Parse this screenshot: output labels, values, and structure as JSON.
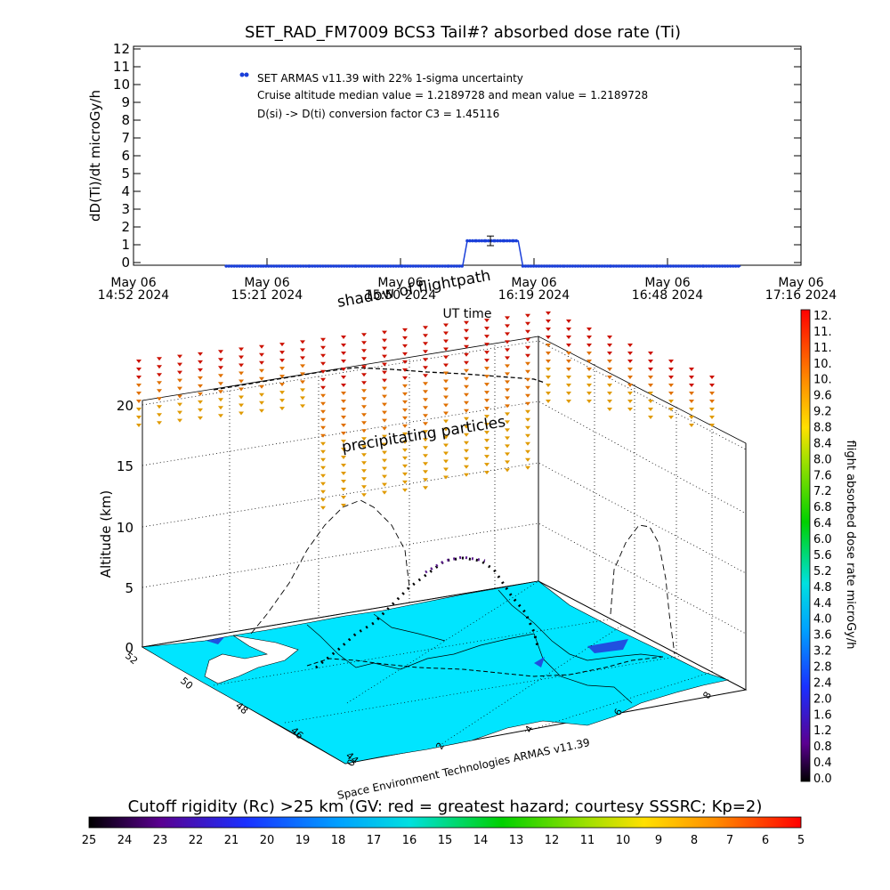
{
  "title": "SET_RAD_FM7009  BCS3 Tail#? absorbed dose rate (Ti)",
  "notes": [
    "SET ARMAS v11.39 with 22% 1-sigma uncertainty",
    "Cruise altitude median value = 1.2189728 and mean value = 1.2189728",
    "D(si) -> D(ti) conversion factor C3 = 1.45116"
  ],
  "x_ticks": [
    {
      "l1": "May 06",
      "l2": "14:52 2024"
    },
    {
      "l1": "May 06",
      "l2": "15:21 2024"
    },
    {
      "l1": "May 06",
      "l2": "15:50 2024"
    },
    {
      "l1": "May 06",
      "l2": "16:19 2024"
    },
    {
      "l1": "May 06",
      "l2": "16:48 2024"
    },
    {
      "l1": "May 06",
      "l2": "17:16 2024"
    }
  ],
  "xlabel": "UT time",
  "overlay_labels": {
    "shadow": "shadow of flightpath",
    "precip": "precipitating particles"
  },
  "scene": {
    "alt_label": "Altitude (km)",
    "alt_ticks": [
      "0",
      "5",
      "10",
      "15",
      "20"
    ],
    "lat_ticks": [
      "52",
      "50",
      "48",
      "46",
      "44"
    ],
    "lon_ticks": [
      "0",
      "2",
      "4",
      "6",
      "8"
    ],
    "credit": "Space Environment Technologies ARMAS v11.39",
    "colors": {
      "map": "#00e5ff",
      "track": "#000000",
      "precip_high": "#cc1100",
      "precip_mid": "#e07000",
      "precip_low": "#e09a00"
    }
  },
  "colorbar": {
    "label": "flight absorbed dose rate microGy/h",
    "ticks": [
      "12.",
      "11.",
      "11.",
      "10.",
      "10.",
      "9.6",
      "9.2",
      "8.8",
      "8.4",
      "8.0",
      "7.6",
      "7.2",
      "6.8",
      "6.4",
      "6.0",
      "5.6",
      "5.2",
      "4.8",
      "4.4",
      "4.0",
      "3.6",
      "3.2",
      "2.8",
      "2.4",
      "2.0",
      "1.6",
      "1.2",
      "0.8",
      "0.4",
      "0.0"
    ]
  },
  "bottom_bar": {
    "label": "Cutoff rigidity (Rc) >25 km (GV: red = greatest hazard; courtesy SSSRC; Kp=2)",
    "ticks": [
      "25",
      "24",
      "23",
      "22",
      "21",
      "20",
      "19",
      "18",
      "17",
      "16",
      "15",
      "14",
      "13",
      "12",
      "11",
      "10",
      "9",
      "8",
      "7",
      "6",
      "5"
    ]
  },
  "chart_data": {
    "type": "line",
    "title": "SET_RAD_FM7009  BCS3 Tail#? absorbed dose rate (Ti)",
    "xlabel": "UT time",
    "ylabel": "dD(Ti)/dt microGy/h",
    "ylim": [
      0,
      12
    ],
    "y_ticks": [
      "0",
      "1",
      "2",
      "3",
      "4",
      "5",
      "6",
      "7",
      "8",
      "9",
      "10",
      "11",
      "12"
    ],
    "xlim": [
      "2024-05-06 14:52",
      "2024-05-06 17:16"
    ],
    "grid": false,
    "color": "#1a3fd9",
    "series": [
      {
        "values": [
          [
            "2024-05-06 15:12",
            -0.2
          ],
          [
            "2024-05-06 15:20",
            -0.2
          ],
          [
            "2024-05-06 15:30",
            -0.2
          ],
          [
            "2024-05-06 15:40",
            -0.2
          ],
          [
            "2024-05-06 15:50",
            -0.2
          ],
          [
            "2024-05-06 16:00",
            -0.2
          ],
          [
            "2024-05-06 16:03",
            -0.2
          ],
          [
            "2024-05-06 16:04",
            1.22
          ],
          [
            "2024-05-06 16:06",
            1.22
          ],
          [
            "2024-05-06 16:08",
            1.22
          ],
          [
            "2024-05-06 16:10",
            1.22
          ],
          [
            "2024-05-06 16:12",
            1.22
          ],
          [
            "2024-05-06 16:14",
            1.22
          ],
          [
            "2024-05-06 16:15",
            1.22
          ],
          [
            "2024-05-06 16:16",
            -0.2
          ],
          [
            "2024-05-06 16:25",
            -0.2
          ],
          [
            "2024-05-06 16:35",
            -0.2
          ],
          [
            "2024-05-06 16:45",
            -0.2
          ],
          [
            "2024-05-06 16:55",
            -0.2
          ],
          [
            "2024-05-06 17:03",
            -0.2
          ]
        ]
      }
    ],
    "error_bar": {
      "x": "2024-05-06 16:09",
      "y": 1.22,
      "low": 0.95,
      "high": 1.49
    },
    "legend_marker": {
      "x": "2024-05-06 15:16",
      "y": 10.55
    }
  }
}
